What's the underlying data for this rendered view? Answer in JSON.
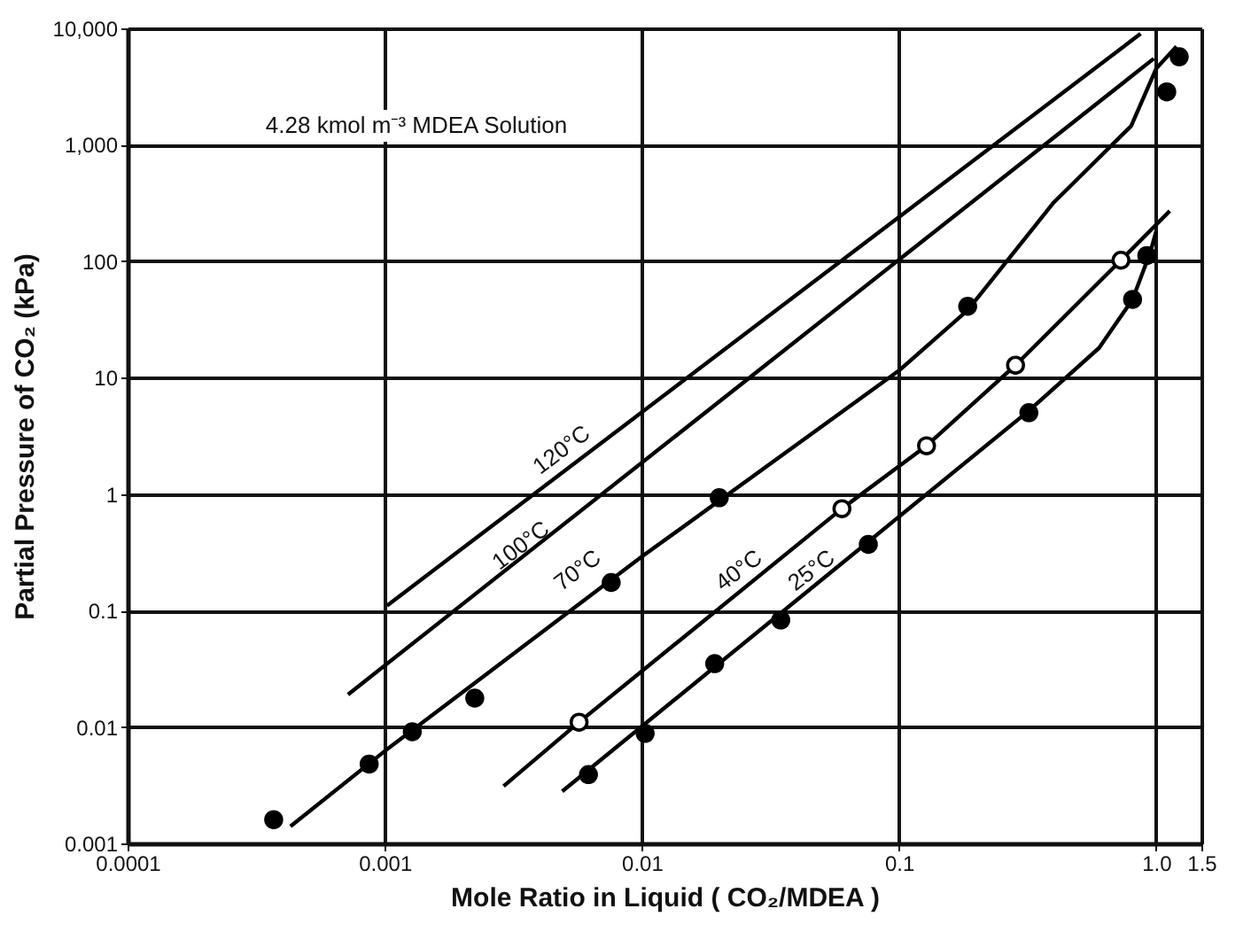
{
  "chart_data": {
    "type": "line",
    "xlabel": "Mole Ratio in Liquid ( CO₂/MDEA )",
    "ylabel": "Partial Pressure of CO₂ (kPa)",
    "log": "xy",
    "grid": true,
    "xlim": [
      0.0001,
      1.5
    ],
    "xticks": [
      0.0001,
      0.001,
      0.01,
      0.1,
      {
        "value": 1,
        "label": "1.0"
      },
      1.5
    ],
    "ylim": [
      0.001,
      10000
    ],
    "yticks": [
      0.001,
      0.01,
      0.1,
      1,
      10,
      100,
      {
        "value": 1000,
        "label": "1,000"
      },
      {
        "value": 10000,
        "label": "10,000"
      }
    ],
    "series": [
      {
        "type": "line",
        "color": "#000000",
        "x": [
          0.00102,
          0.87
        ],
        "values": [
          0.11,
          9000
        ]
      },
      {
        "type": "line",
        "color": "#000000",
        "x": [
          0.00072,
          0.98
        ],
        "values": [
          0.019,
          5500
        ]
      },
      {
        "type": "line",
        "color": "#000000",
        "x": [
          0.00043,
          0.001,
          0.01,
          0.1,
          0.185,
          0.4,
          0.8,
          1.0,
          1.2
        ],
        "values": [
          0.0014,
          0.0062,
          0.29,
          11.5,
          38,
          320,
          1450,
          4500,
          7000
        ]
      },
      {
        "type": "line",
        "color": "#000000",
        "x": [
          0.0029,
          0.0057,
          0.06,
          0.128,
          0.284,
          0.73,
          1.13
        ],
        "values": [
          0.0031,
          0.011,
          0.75,
          2.6,
          12.8,
          102,
          270
        ]
      },
      {
        "type": "line",
        "color": "#000000",
        "x": [
          0.0049,
          0.076,
          0.32,
          0.6,
          0.81,
          0.95,
          1.0
        ],
        "values": [
          0.0028,
          0.39,
          5.2,
          18,
          47,
          120,
          180
        ]
      },
      {
        "type": "scatter",
        "marker": "circle",
        "color": "#000000",
        "x": [
          0.00037,
          0.00087,
          0.00128,
          0.00224,
          0.0076,
          0.02,
          0.185,
          1.1,
          1.23
        ],
        "values": [
          0.0016,
          0.0048,
          0.0091,
          0.0177,
          0.174,
          0.93,
          41,
          2850,
          5700
        ]
      },
      {
        "type": "scatter",
        "marker": "circle",
        "color": "#ffffff",
        "x": [
          0.0057,
          0.06,
          0.128,
          0.284,
          0.73
        ],
        "values": [
          0.011,
          0.75,
          2.6,
          12.8,
          102
        ]
      },
      {
        "type": "scatter",
        "marker": "circle",
        "color": "#000000",
        "x": [
          0.0062,
          0.0103,
          0.0192,
          0.0347,
          0.076,
          0.32,
          0.81,
          0.92
        ],
        "values": [
          0.0039,
          0.0088,
          0.035,
          0.083,
          0.37,
          5.0,
          47,
          112
        ]
      }
    ],
    "annotations": [
      "4.28 kmol m⁻³ MDEA Solution",
      "120°C",
      "100°C",
      "70°C",
      "40°C",
      "25°C"
    ]
  }
}
